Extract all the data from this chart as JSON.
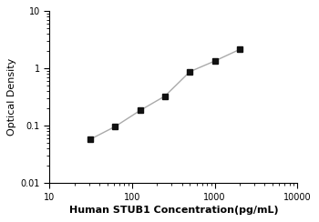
{
  "x_data": [
    31.25,
    62.5,
    125,
    250,
    500,
    1000,
    2000
  ],
  "y_data": [
    0.058,
    0.097,
    0.185,
    0.33,
    0.88,
    1.35,
    2.15
  ],
  "line_color": "#aaaaaa",
  "marker_color": "#111111",
  "marker": "s",
  "marker_size": 4,
  "line_width": 1.0,
  "xlabel": "Human STUB1 Concentration(pg/mL)",
  "ylabel": "Optical Density",
  "xlim": [
    10,
    10000
  ],
  "ylim": [
    0.01,
    10
  ],
  "xticks": [
    10,
    100,
    1000,
    10000
  ],
  "yticks": [
    0.01,
    0.1,
    1,
    10
  ],
  "xlabel_fontsize": 8,
  "ylabel_fontsize": 8,
  "tick_fontsize": 7,
  "xlabel_fontweight": "bold"
}
